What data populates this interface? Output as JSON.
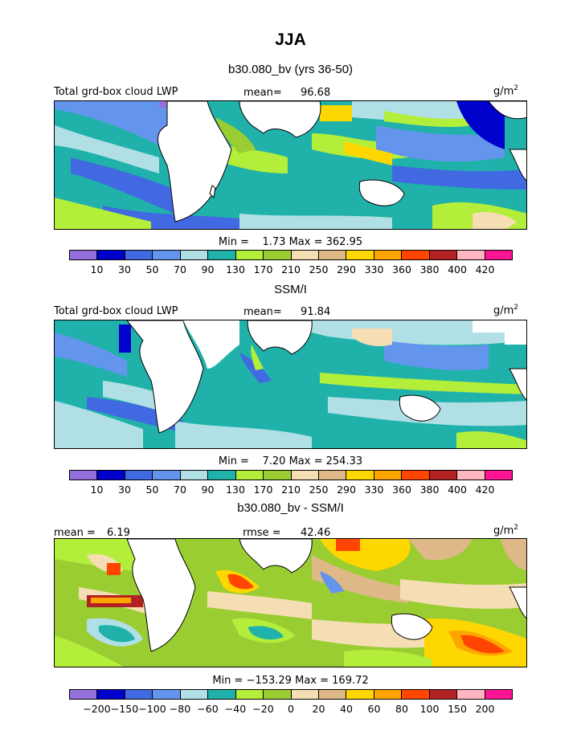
{
  "page": {
    "title": "JJA"
  },
  "chart_data": [
    {
      "type": "heatmap",
      "title": "b30.080_bv (yrs 36-50)",
      "variable_label": "Total grd-box cloud LWP",
      "units": "g/m",
      "units_exponent": "2",
      "stat_label": "mean=",
      "stat_value": "96.68",
      "min_label": "Min =",
      "min": "1.73",
      "max_label": "Max =",
      "max": "362.95",
      "levels": [
        "10",
        "30",
        "50",
        "70",
        "90",
        "130",
        "170",
        "210",
        "250",
        "290",
        "330",
        "360",
        "380",
        "400",
        "420"
      ],
      "colors": [
        "#9370db",
        "#0000cd",
        "#4169e1",
        "#6495ed",
        "#b0e0e6",
        "#20b2aa",
        "#b3ee3a",
        "#9acd32",
        "#f5deb3",
        "#deb887",
        "#ffd700",
        "#ffa500",
        "#ff4500",
        "#b22222",
        "#ffb6c1",
        "#ff1493"
      ]
    },
    {
      "type": "heatmap",
      "title": "SSM/I",
      "variable_label": "Total grd-box cloud LWP",
      "units": "g/m",
      "units_exponent": "2",
      "stat_label": "mean=",
      "stat_value": "91.84",
      "min_label": "Min =",
      "min": "7.20",
      "max_label": "Max =",
      "max": "254.33",
      "levels": [
        "10",
        "30",
        "50",
        "70",
        "90",
        "130",
        "170",
        "210",
        "250",
        "290",
        "330",
        "360",
        "380",
        "400",
        "420"
      ],
      "colors": [
        "#9370db",
        "#0000cd",
        "#4169e1",
        "#6495ed",
        "#b0e0e6",
        "#20b2aa",
        "#b3ee3a",
        "#9acd32",
        "#f5deb3",
        "#deb887",
        "#ffd700",
        "#ffa500",
        "#ff4500",
        "#b22222",
        "#ffb6c1",
        "#ff1493"
      ]
    },
    {
      "type": "heatmap",
      "title": "b30.080_bv - SSM/I",
      "stat_label": "mean =",
      "stat_value": "6.19",
      "rmse_label": "rmse =",
      "rmse_value": "42.46",
      "units": "g/m",
      "units_exponent": "2",
      "min_label": "Min =",
      "min": "−153.29",
      "max_label": "Max =",
      "max": "169.72",
      "levels": [
        "−200",
        "−150",
        "−100",
        "−80",
        "−60",
        "−40",
        "−20",
        "0",
        "20",
        "40",
        "60",
        "80",
        "100",
        "150",
        "200"
      ],
      "colors": [
        "#9370db",
        "#0000cd",
        "#4169e1",
        "#6495ed",
        "#b0e0e6",
        "#20b2aa",
        "#b3ee3a",
        "#9acd32",
        "#f5deb3",
        "#deb887",
        "#ffd700",
        "#ffa500",
        "#ff4500",
        "#b22222",
        "#ffb6c1",
        "#ff1493"
      ]
    }
  ]
}
